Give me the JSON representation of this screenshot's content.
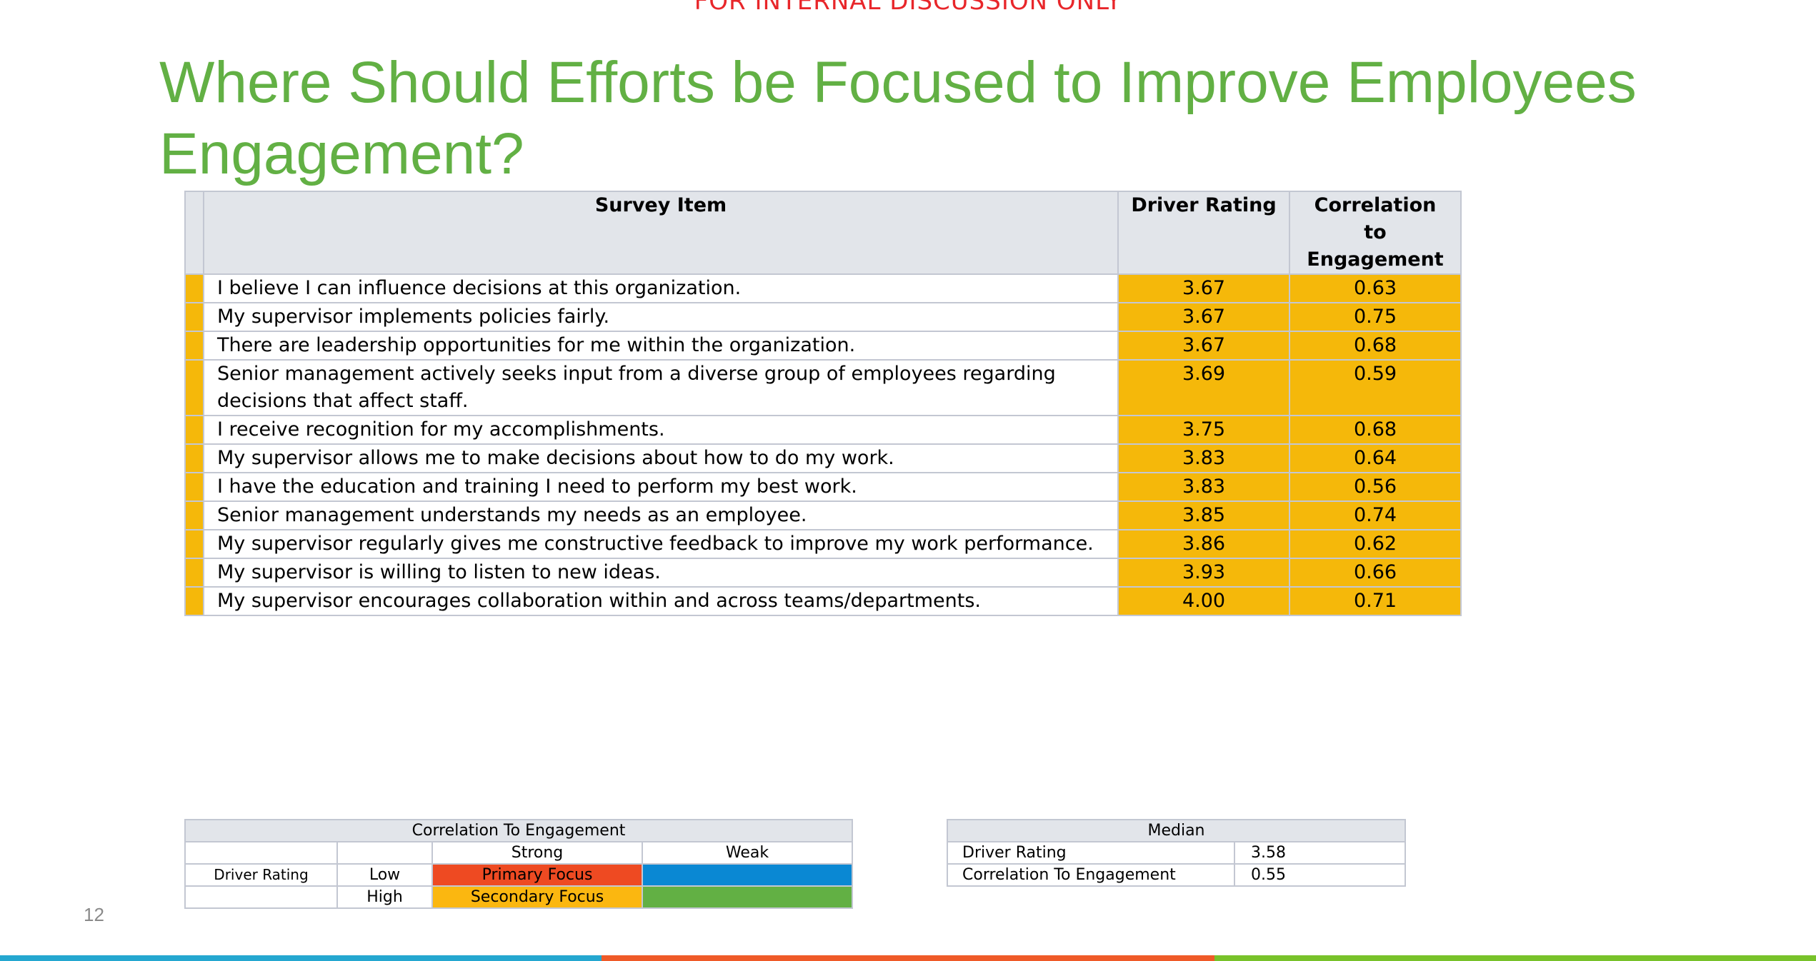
{
  "banner": "FOR INTERNAL DISCUSSION ONLY",
  "title": "Where Should Efforts be Focused to Improve Employees Engagement?",
  "survey_table": {
    "headers": {
      "item": "Survey Item",
      "driver": "Driver Rating",
      "correlation": "Correlation to Engagement"
    },
    "rows": [
      {
        "item": "I believe I can influence decisions at this organization.",
        "driver": "3.67",
        "correlation": "0.63"
      },
      {
        "item": "My supervisor implements policies fairly.",
        "driver": "3.67",
        "correlation": "0.75"
      },
      {
        "item": "There are leadership opportunities for me within the organization.",
        "driver": "3.67",
        "correlation": "0.68"
      },
      {
        "item": "Senior management actively seeks input from a diverse group of employees regarding decisions that affect staff.",
        "driver": "3.69",
        "correlation": "0.59"
      },
      {
        "item": "I receive recognition for my accomplishments.",
        "driver": "3.75",
        "correlation": "0.68"
      },
      {
        "item": "My supervisor allows me to make decisions about how to do my work.",
        "driver": "3.83",
        "correlation": "0.64"
      },
      {
        "item": "I have the education and training I need to perform my best work.",
        "driver": "3.83",
        "correlation": "0.56"
      },
      {
        "item": "Senior management understands my needs as an employee.",
        "driver": "3.85",
        "correlation": "0.74"
      },
      {
        "item": "My supervisor regularly gives me constructive feedback to improve my work performance.",
        "driver": "3.86",
        "correlation": "0.62"
      },
      {
        "item": "My supervisor is willing to listen to new ideas.",
        "driver": "3.93",
        "correlation": "0.66"
      },
      {
        "item": "My supervisor encourages collaboration within and across teams/departments.",
        "driver": "4.00",
        "correlation": "0.71"
      }
    ]
  },
  "legend": {
    "header": "Correlation To Engagement",
    "strong": "Strong",
    "weak": "Weak",
    "driver_rating": "Driver Rating",
    "low": "Low",
    "high": "High",
    "primary_focus": "Primary Focus",
    "secondary_focus": "Secondary Focus",
    "colors": {
      "primary": "#ee4a22",
      "secondary": "#fbb710",
      "low_weak": "#0a88d3",
      "high_weak": "#62b044"
    }
  },
  "median": {
    "header": "Median",
    "rows": [
      {
        "label": "Driver Rating",
        "value": "3.58"
      },
      {
        "label": "Correlation To Engagement",
        "value": "0.55"
      }
    ]
  },
  "page_number": "12",
  "colors": {
    "title": "#62b044",
    "highlight": "#f5b80a",
    "bar_blue": "#24a7d0",
    "bar_orange": "#ef5a28",
    "bar_green": "#78c22a"
  }
}
